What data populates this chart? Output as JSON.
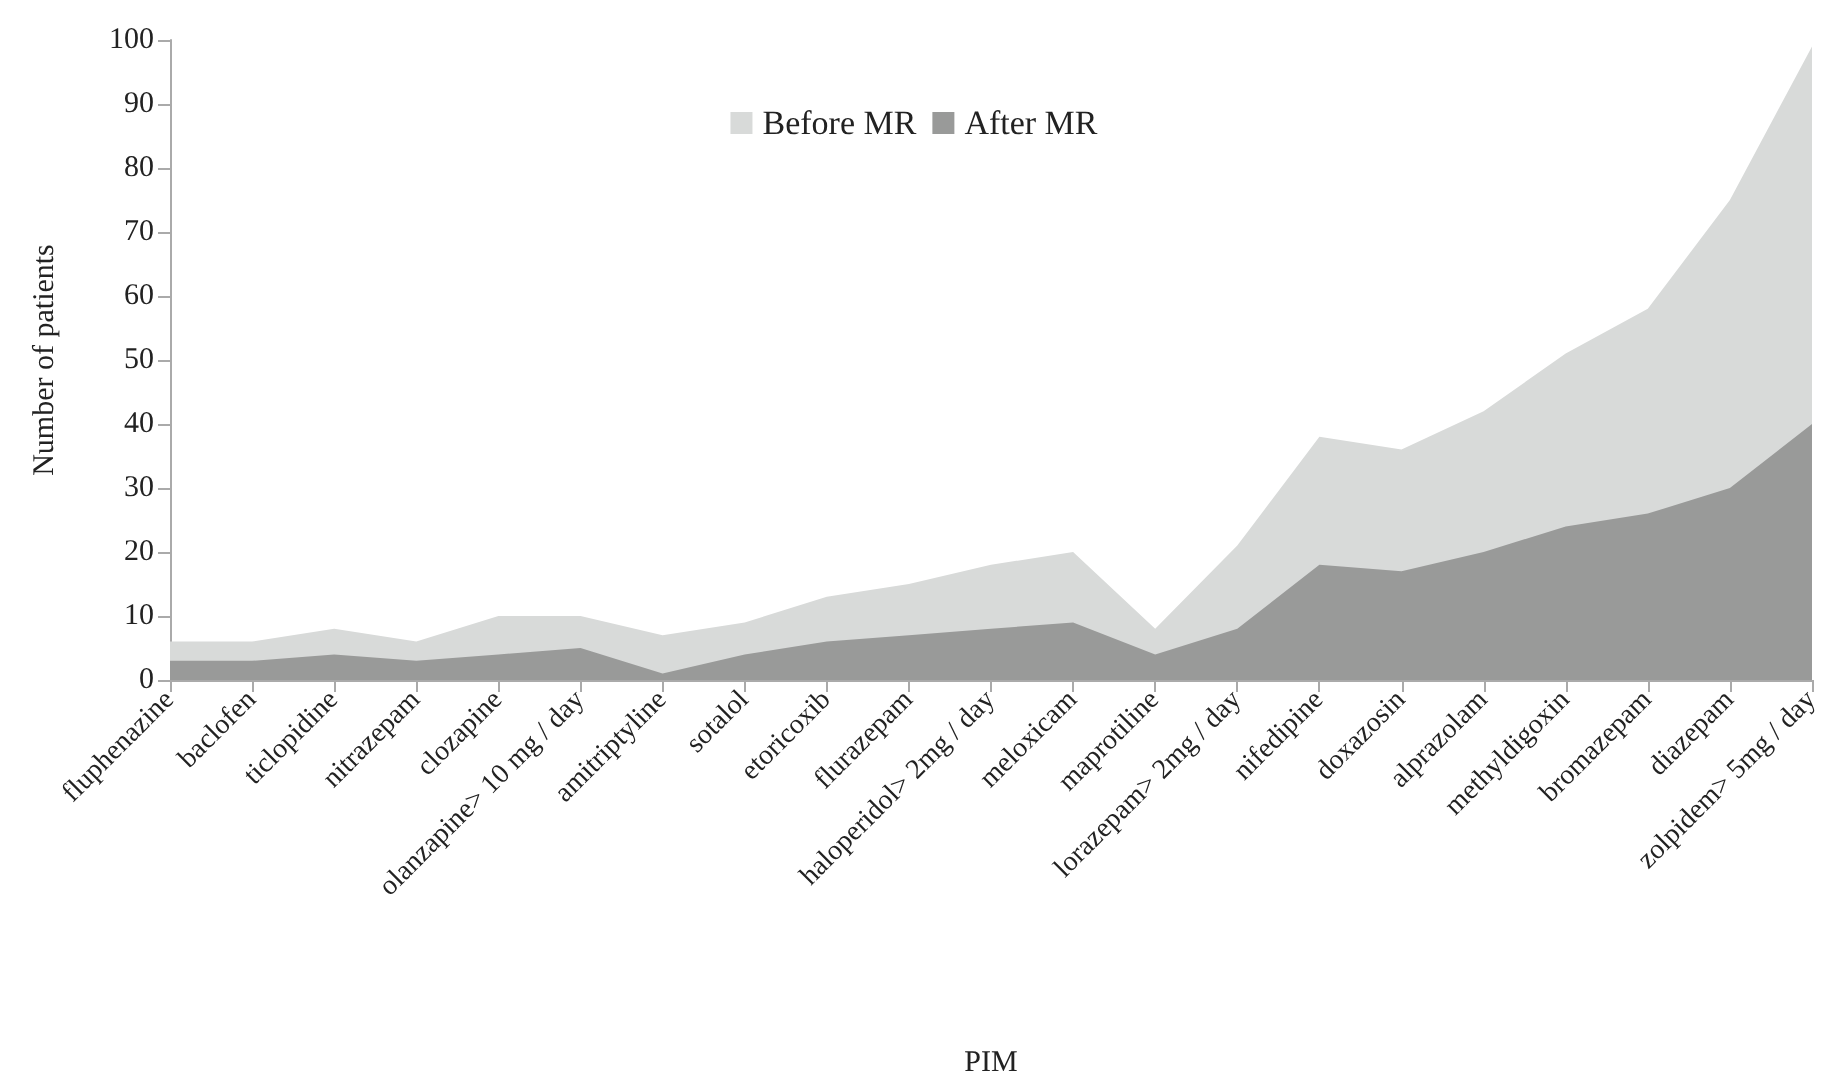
{
  "chart_data": {
    "type": "area",
    "xlabel": "PIM",
    "ylabel": "Number of patients",
    "categories": [
      "fluphenazine",
      "baclofen",
      "ticlopidine",
      "nitrazepam",
      "clozapine",
      "olanzapine> 10 mg / day",
      "amitriptyline",
      "sotalol",
      "etoricoxib",
      "flurazepam",
      "haloperidol> 2mg / day",
      "meloxicam",
      "maprotiline",
      "lorazepam> 2mg / day",
      "nifedipine",
      "doxazosin",
      "alprazolam",
      "methyldigoxin",
      "bromazepam",
      "diazepam",
      "zolpidem> 5mg / day"
    ],
    "series": [
      {
        "name": "Before MR",
        "color": "#d8dad9",
        "values": [
          6,
          6,
          8,
          6,
          10,
          10,
          7,
          9,
          13,
          15,
          18,
          20,
          8,
          21,
          38,
          36,
          42,
          51,
          58,
          75,
          99
        ]
      },
      {
        "name": "After MR",
        "color": "#999a99",
        "values": [
          3,
          3,
          4,
          3,
          4,
          5,
          1,
          4,
          6,
          7,
          8,
          9,
          4,
          8,
          18,
          17,
          20,
          24,
          26,
          30,
          40
        ]
      }
    ],
    "ylim": [
      0,
      100
    ],
    "yticks": [
      0,
      10,
      20,
      30,
      40,
      50,
      60,
      70,
      80,
      90,
      100
    ],
    "grid": false,
    "legend": "top",
    "marker": "none"
  }
}
